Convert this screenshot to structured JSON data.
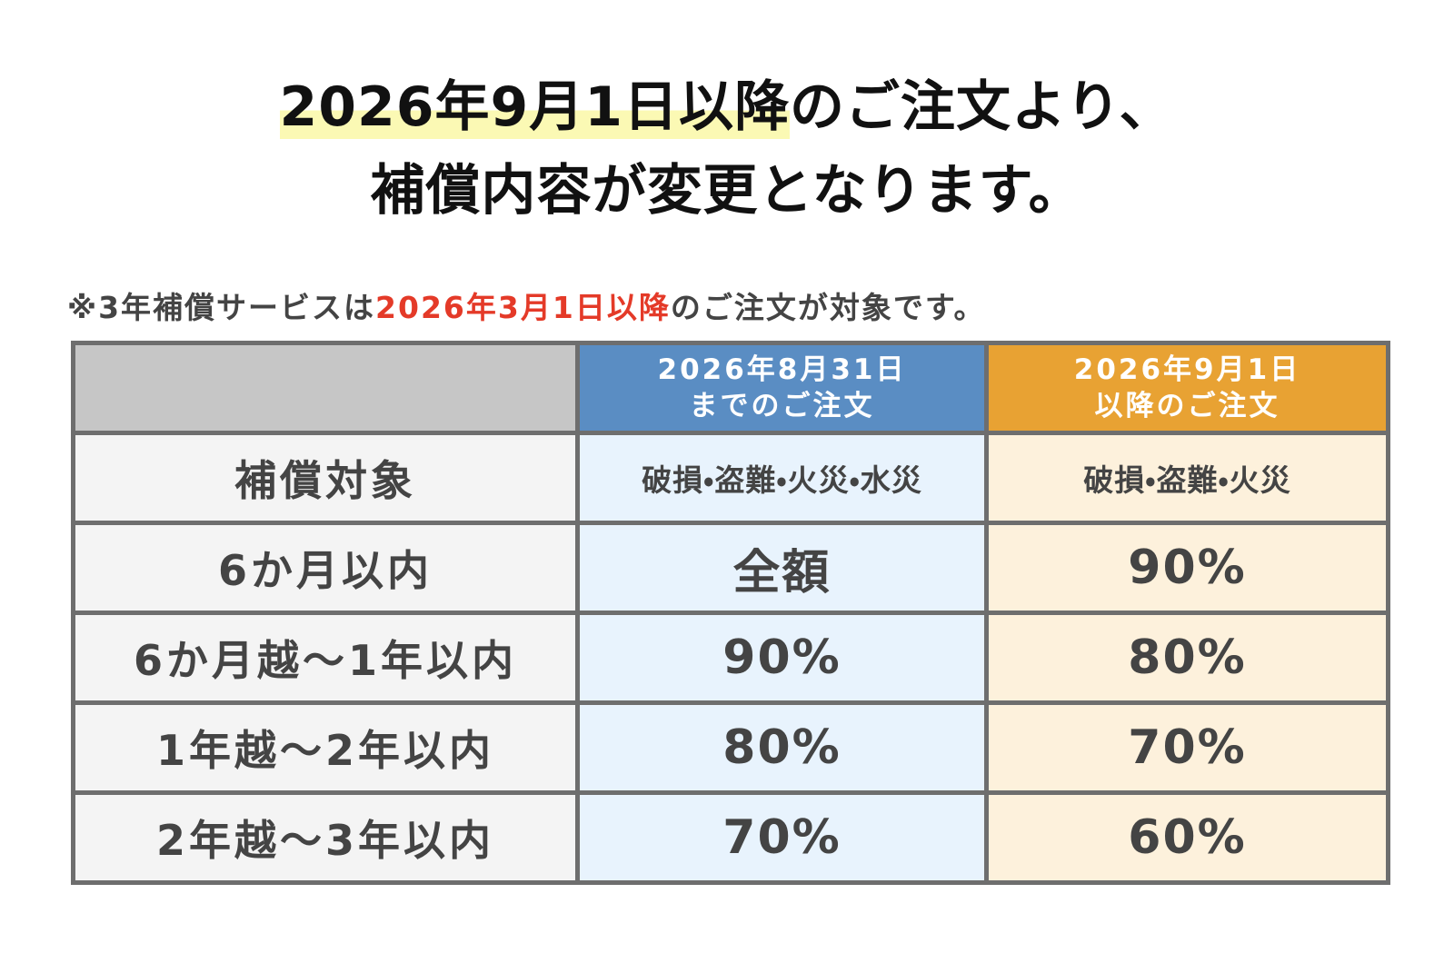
{
  "title": {
    "highlighted": "2026年9月1日以降",
    "line1_rest": "のご注文より、",
    "line2": "補償内容が変更となります。"
  },
  "note": {
    "before": "※3年補償サービスは",
    "emphasis": "2026年3月1日以降",
    "after": "のご注文が対象です。"
  },
  "table": {
    "header": [
      [
        "2026年8月31日",
        "までのご注文"
      ],
      [
        "2026年9月1日",
        "以降のご注文"
      ]
    ],
    "rows": [
      [
        "補償対象",
        "破損・盗難・火災・水災",
        "破損・盗難・火災"
      ],
      [
        "6か月以内",
        "全額",
        "90%"
      ],
      [
        "6か月越～1年以内",
        "90%",
        "80%"
      ],
      [
        "1年越～2年以内",
        "80%",
        "70%"
      ],
      [
        "2年越～3年以内",
        "70%",
        "60%"
      ]
    ]
  }
}
